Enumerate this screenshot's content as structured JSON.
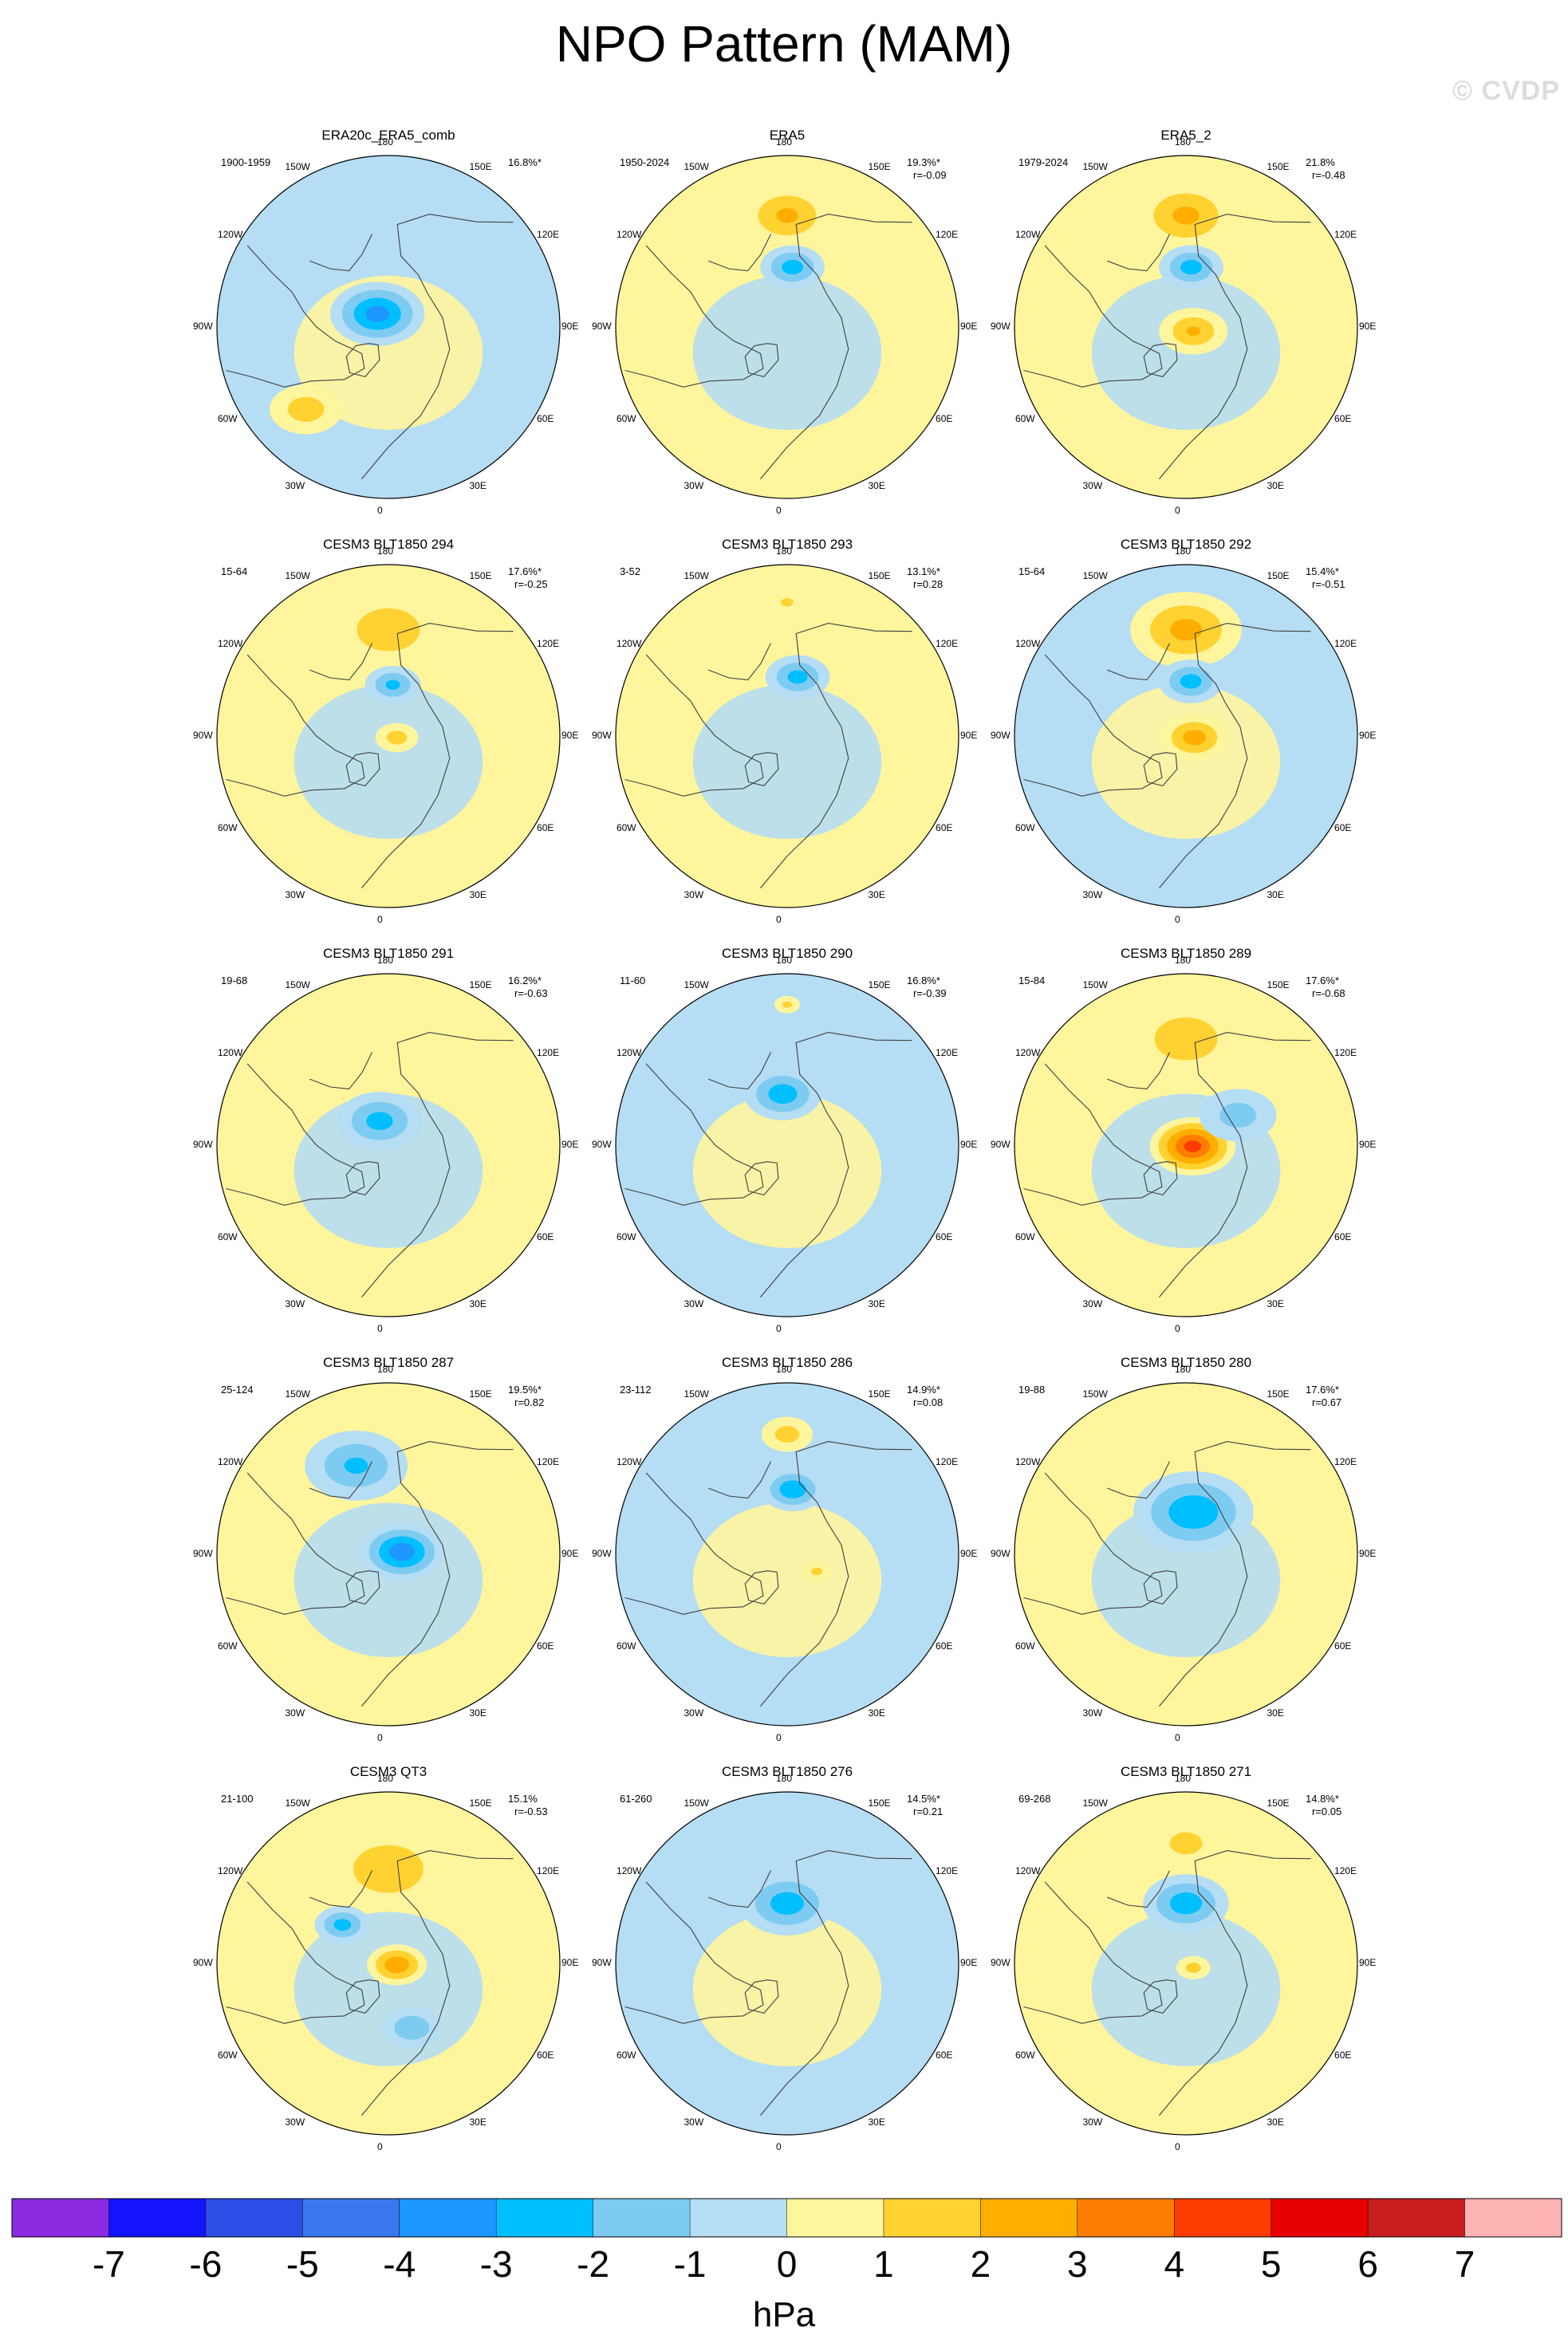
{
  "title": "NPO Pattern (MAM)",
  "watermark": "© CVDP",
  "colors": {
    "levels_colors": [
      "#8a2be2",
      "#1414ff",
      "#2b4fe6",
      "#3a78ee",
      "#1e96ff",
      "#00bfff",
      "#7ecbf2",
      "#b5ddf3",
      "#fff59d",
      "#ffd231",
      "#ffae00",
      "#ff7d00",
      "#ff3c00",
      "#e60000",
      "#c81e1e",
      "#ffb4b4"
    ],
    "land_outline": "#404040",
    "circle_outline": "#000000"
  },
  "chart_data": {
    "type": "heatmap",
    "title": "NPO Pattern (MAM)",
    "projection": "north-polar-stereographic",
    "variable": "sea level pressure anomaly",
    "colorbar": {
      "label": "hPa",
      "ticks": [
        "-7",
        "-6",
        "-5",
        "-4",
        "-3",
        "-2",
        "-1",
        "0",
        "1",
        "2",
        "3",
        "4",
        "5",
        "6",
        "7"
      ],
      "levels": [
        -7,
        -6,
        -5,
        -4,
        -3,
        -2,
        -1,
        0,
        1,
        2,
        3,
        4,
        5,
        6,
        7
      ]
    },
    "longitude_labels": [
      "180",
      "150E",
      "120E",
      "90E",
      "60E",
      "30E",
      "0",
      "30W",
      "60W",
      "90W",
      "120W",
      "150W"
    ],
    "panels": [
      {
        "name": "ERA20c_ERA5_comb",
        "period": "1900-1959",
        "pct": "16.8%*",
        "r": "",
        "bg": 1,
        "features": [
          {
            "type": "low",
            "lon": 220,
            "dist": 0.1,
            "r": 0.22,
            "min": -3.6
          },
          {
            "type": "high",
            "lon": 315,
            "dist": 0.68,
            "r": 0.17,
            "max": 1.6
          }
        ]
      },
      {
        "name": "ERA5",
        "period": "1950-2024",
        "pct": "19.3%*",
        "r": "r=-0.09",
        "bg": 0,
        "features": [
          {
            "type": "high",
            "lon": 180,
            "dist": 0.65,
            "r": 0.22,
            "max": 2.2
          },
          {
            "type": "low",
            "lon": 175,
            "dist": 0.35,
            "r": 0.15,
            "min": -2.6
          }
        ]
      },
      {
        "name": "ERA5_2",
        "period": "1979-2024",
        "pct": "21.8%",
        "r": "r=-0.48",
        "bg": 0,
        "features": [
          {
            "type": "high",
            "lon": 180,
            "dist": 0.65,
            "r": 0.24,
            "max": 2.3
          },
          {
            "type": "low",
            "lon": 175,
            "dist": 0.35,
            "r": 0.15,
            "min": -2.6
          },
          {
            "type": "high",
            "lon": 60,
            "dist": 0.05,
            "r": 0.16,
            "max": 2.1
          }
        ]
      },
      {
        "name": "CESM3 BLT1850 294",
        "period": "15-64",
        "pct": "17.6%*",
        "r": "r=-0.25",
        "bg": 0,
        "features": [
          {
            "type": "high",
            "lon": 180,
            "dist": 0.62,
            "r": 0.26,
            "max": 1.9
          },
          {
            "type": "low",
            "lon": 175,
            "dist": 0.3,
            "r": 0.13,
            "min": -2.3
          },
          {
            "type": "high",
            "lon": 80,
            "dist": 0.05,
            "r": 0.1,
            "max": 1.5
          }
        ]
      },
      {
        "name": "CESM3 BLT1850 293",
        "period": "3-52",
        "pct": "13.1%*",
        "r": "r=0.28",
        "bg": 0,
        "features": [
          {
            "type": "low",
            "lon": 170,
            "dist": 0.35,
            "r": 0.15,
            "min": -2.5
          },
          {
            "type": "high",
            "lon": 180,
            "dist": 0.78,
            "r": 0.07,
            "max": 1.3
          }
        ]
      },
      {
        "name": "CESM3 BLT1850 292",
        "period": "15-64",
        "pct": "15.4%*",
        "r": "r=-0.51",
        "bg": 1,
        "features": [
          {
            "type": "high",
            "lon": 180,
            "dist": 0.62,
            "r": 0.26,
            "max": 2.4
          },
          {
            "type": "low",
            "lon": 175,
            "dist": 0.32,
            "r": 0.15,
            "min": -2.6
          },
          {
            "type": "high",
            "lon": 80,
            "dist": 0.05,
            "r": 0.16,
            "max": 2.6
          }
        ]
      },
      {
        "name": "CESM3 BLT1850 291",
        "period": "19-68",
        "pct": "16.2%*",
        "r": "r=-0.63",
        "bg": 0,
        "features": [
          {
            "type": "low",
            "lon": 200,
            "dist": 0.15,
            "r": 0.2,
            "min": -2.5
          }
        ]
      },
      {
        "name": "CESM3 BLT1850 290",
        "period": "11-60",
        "pct": "16.8%*",
        "r": "r=-0.39",
        "bg": 1,
        "features": [
          {
            "type": "low",
            "lon": 185,
            "dist": 0.3,
            "r": 0.18,
            "min": -2.8
          },
          {
            "type": "high",
            "lon": 180,
            "dist": 0.82,
            "r": 0.06,
            "max": 1.2
          }
        ]
      },
      {
        "name": "CESM3 BLT1850 289",
        "period": "15-84",
        "pct": "17.6%*",
        "r": "r=-0.68",
        "bg": 0,
        "features": [
          {
            "type": "high",
            "lon": 180,
            "dist": 0.62,
            "r": 0.26,
            "max": 1.9
          },
          {
            "type": "high",
            "lon": 80,
            "dist": 0.04,
            "r": 0.2,
            "max": 4.6
          },
          {
            "type": "low",
            "lon": 120,
            "dist": 0.35,
            "r": 0.18,
            "min": -1.5
          }
        ]
      },
      {
        "name": "CESM3 BLT1850 287",
        "period": "25-124",
        "pct": "19.5%*",
        "r": "r=0.82",
        "bg": 0,
        "features": [
          {
            "type": "low",
            "lon": 200,
            "dist": 0.55,
            "r": 0.24,
            "min": -2.2
          },
          {
            "type": "low",
            "lon": 100,
            "dist": 0.08,
            "r": 0.2,
            "min": -3.9
          }
        ]
      },
      {
        "name": "CESM3 BLT1850 286",
        "period": "23-112",
        "pct": "14.9%*",
        "r": "r=0.08",
        "bg": 1,
        "features": [
          {
            "type": "high",
            "lon": 180,
            "dist": 0.7,
            "r": 0.12,
            "max": 1.5
          },
          {
            "type": "low",
            "lon": 175,
            "dist": 0.38,
            "r": 0.15,
            "min": -3.0
          },
          {
            "type": "high",
            "lon": 60,
            "dist": 0.2,
            "r": 0.07,
            "max": 1.2
          }
        ]
      },
      {
        "name": "CESM3 BLT1850 280",
        "period": "19-88",
        "pct": "17.6%*",
        "r": "r=0.67",
        "bg": 0,
        "features": [
          {
            "type": "low",
            "lon": 170,
            "dist": 0.25,
            "r": 0.28,
            "min": -3.0
          }
        ]
      },
      {
        "name": "CESM3 QT3",
        "period": "21-100",
        "pct": "15.1%",
        "r": "r=-0.53",
        "bg": 0,
        "features": [
          {
            "type": "high",
            "lon": 180,
            "dist": 0.55,
            "r": 0.28,
            "max": 2.0
          },
          {
            "type": "low",
            "lon": 230,
            "dist": 0.35,
            "r": 0.13,
            "min": -2.5
          },
          {
            "type": "high",
            "lon": 80,
            "dist": 0.05,
            "r": 0.14,
            "max": 3.0
          },
          {
            "type": "low",
            "lon": 20,
            "dist": 0.4,
            "r": 0.14,
            "min": -2.0
          }
        ]
      },
      {
        "name": "CESM3 BLT1850 276",
        "period": "61-260",
        "pct": "14.5%*",
        "r": "r=0.21",
        "bg": 1,
        "features": [
          {
            "type": "low",
            "lon": 180,
            "dist": 0.35,
            "r": 0.22,
            "min": -2.7
          }
        ]
      },
      {
        "name": "CESM3 BLT1850 271",
        "period": "69-268",
        "pct": "14.8%*",
        "r": "r=0.05",
        "bg": 0,
        "features": [
          {
            "type": "low",
            "lon": 180,
            "dist": 0.35,
            "r": 0.2,
            "min": -2.8
          },
          {
            "type": "high",
            "lon": 180,
            "dist": 0.7,
            "r": 0.16,
            "max": 1.5
          },
          {
            "type": "high",
            "lon": 60,
            "dist": 0.05,
            "r": 0.08,
            "max": 1.4
          }
        ]
      }
    ]
  }
}
